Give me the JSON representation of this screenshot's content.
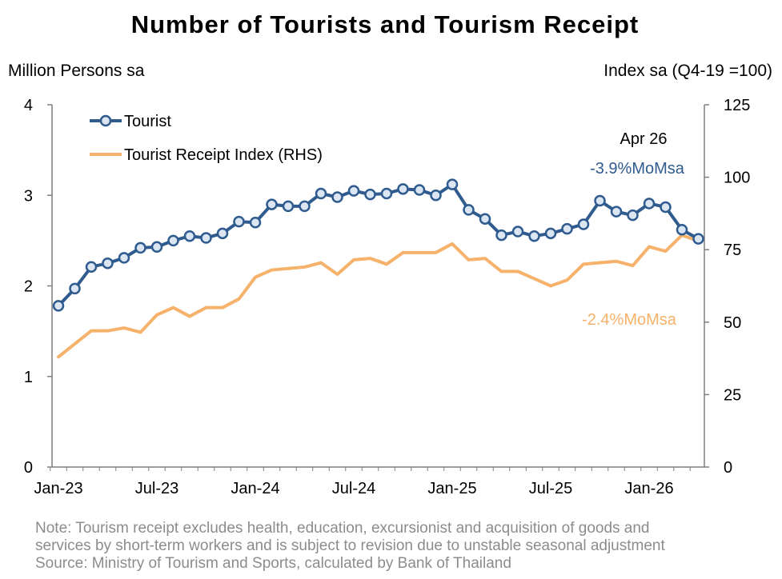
{
  "chart_data": {
    "type": "line",
    "title": "Number of Tourists and Tourism Receipt",
    "y_left_label": "Million Persons sa",
    "y_right_label": "Index sa (Q4-19 =100)",
    "y_left_range": [
      0,
      4
    ],
    "y_right_range": [
      0,
      125
    ],
    "y_left_ticks": [
      "0",
      "1",
      "2",
      "3",
      "4"
    ],
    "y_right_ticks": [
      "0",
      "25",
      "50",
      "75",
      "100",
      "125"
    ],
    "x_tick_labels": [
      "Jan-23",
      "Jul-23",
      "Jan-24",
      "Jul-24",
      "Jan-25",
      "Jul-25",
      "Jan-26"
    ],
    "x_tick_months": [
      "2023-01",
      "2023-07",
      "2024-01",
      "2024-07",
      "2025-01",
      "2025-07",
      "2026-01"
    ],
    "months": [
      "2023-01",
      "2023-02",
      "2023-03",
      "2023-04",
      "2023-05",
      "2023-06",
      "2023-07",
      "2023-08",
      "2023-09",
      "2023-10",
      "2023-11",
      "2023-12",
      "2024-01",
      "2024-02",
      "2024-03",
      "2024-04",
      "2024-05",
      "2024-06",
      "2024-07",
      "2024-08",
      "2024-09",
      "2024-10",
      "2024-11",
      "2024-12",
      "2025-01",
      "2025-02",
      "2025-03",
      "2025-04",
      "2025-05",
      "2025-06",
      "2025-07",
      "2025-08",
      "2025-09",
      "2025-10",
      "2025-11",
      "2025-12",
      "2026-01",
      "2026-02",
      "2026-03",
      "2026-04"
    ],
    "series": [
      {
        "name": "Tourist",
        "axis": "left",
        "color": "#2f5b8e",
        "marker": "circle",
        "values": [
          1.78,
          1.97,
          2.21,
          2.25,
          2.31,
          2.42,
          2.43,
          2.5,
          2.55,
          2.53,
          2.58,
          2.71,
          2.7,
          2.9,
          2.88,
          2.88,
          3.02,
          2.98,
          3.05,
          3.01,
          3.02,
          3.07,
          3.06,
          3.0,
          3.12,
          2.84,
          2.74,
          2.56,
          2.6,
          2.55,
          2.58,
          2.63,
          2.68,
          2.94,
          2.82,
          2.78,
          2.91,
          2.87,
          2.62,
          2.52
        ]
      },
      {
        "name": "Tourist Receipt Index (RHS)",
        "axis": "right",
        "color": "#f6b26b",
        "marker": "none",
        "values": [
          38,
          42.5,
          47,
          47,
          48,
          46.5,
          52.5,
          55,
          52,
          55,
          55,
          58,
          65.5,
          68,
          68.5,
          69,
          70.5,
          66.5,
          71.5,
          72,
          70,
          74,
          74,
          74,
          77,
          71.5,
          72,
          67.5,
          67.5,
          65,
          62.5,
          64.5,
          70,
          70.5,
          71,
          69.5,
          76,
          74.5,
          80,
          78
        ]
      }
    ],
    "annotations": [
      {
        "text": "Apr 26",
        "color": "#000000"
      },
      {
        "text": "-3.9%MoMsa",
        "color": "#2f5b8e"
      },
      {
        "text": "-2.4%MoMsa",
        "color": "#f6b26b"
      }
    ],
    "grid": false,
    "legend_position": "top-left"
  },
  "note_lines": [
    "Note: Tourism receipt excludes health, education, excursionist and acquisition of goods and",
    "services by short-term workers and is subject to revision due to unstable seasonal adjustment",
    "Source: Ministry of Tourism and Sports, calculated by Bank of Thailand"
  ]
}
